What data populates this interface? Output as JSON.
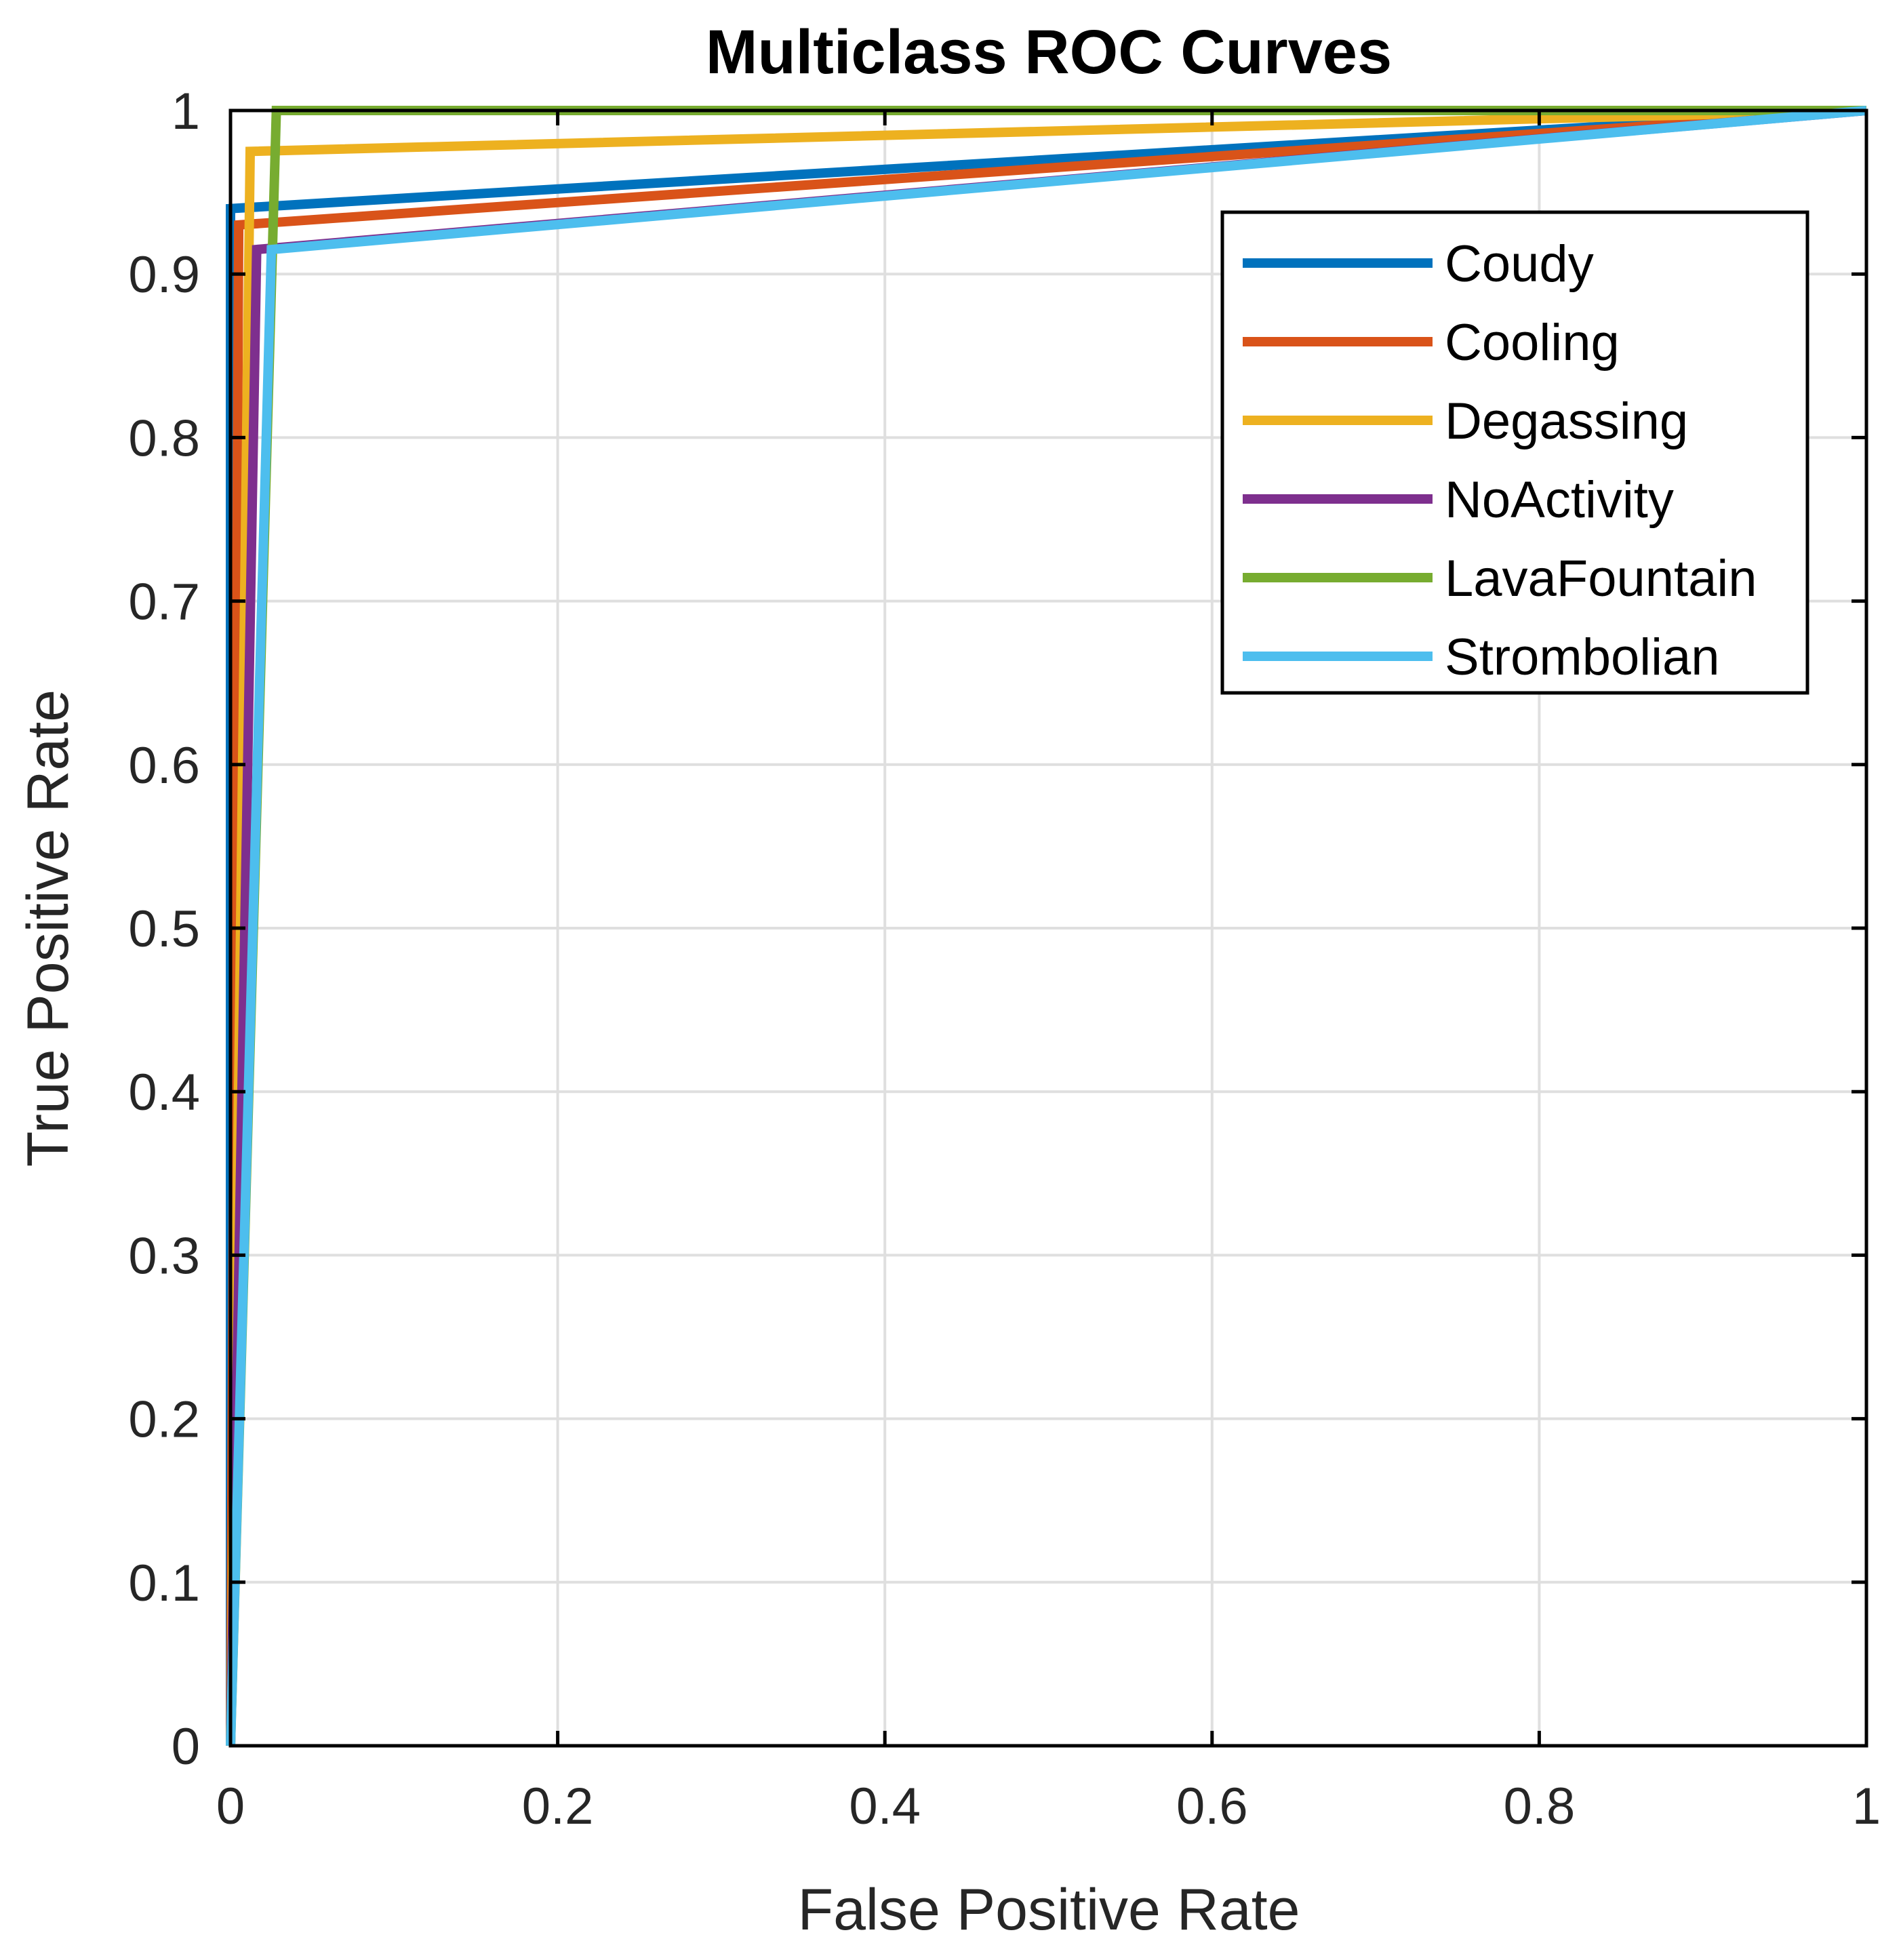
{
  "chart_data": {
    "type": "line",
    "title": "Multiclass ROC Curves",
    "xlabel": "False Positive Rate",
    "ylabel": "True Positive Rate",
    "xlim": [
      0,
      1
    ],
    "ylim": [
      0,
      1
    ],
    "grid": true,
    "legend_position": "top-right",
    "x_ticks": [
      0,
      0.2,
      0.4,
      0.6,
      0.8,
      1
    ],
    "x_tick_labels": [
      "0",
      "0.2",
      "0.4",
      "0.6",
      "0.8",
      "1"
    ],
    "y_ticks": [
      0,
      0.1,
      0.2,
      0.3,
      0.4,
      0.5,
      0.6,
      0.7,
      0.8,
      0.9,
      1
    ],
    "y_tick_labels": [
      "0",
      "0.1",
      "0.2",
      "0.3",
      "0.4",
      "0.5",
      "0.6",
      "0.7",
      "0.8",
      "0.9",
      "1"
    ],
    "series": [
      {
        "name": "Coudy",
        "color": "#0072BD",
        "x": [
          0,
          0,
          1
        ],
        "y": [
          0,
          0.94,
          1
        ]
      },
      {
        "name": "Cooling",
        "color": "#D95319",
        "x": [
          0,
          0.005,
          1
        ],
        "y": [
          0,
          0.93,
          1
        ]
      },
      {
        "name": "Degassing",
        "color": "#EDB120",
        "x": [
          0,
          0.012,
          1
        ],
        "y": [
          0,
          0.975,
          1
        ]
      },
      {
        "name": "NoActivity",
        "color": "#7E2F8E",
        "x": [
          0,
          0.016,
          1
        ],
        "y": [
          0,
          0.915,
          1
        ]
      },
      {
        "name": "LavaFountain",
        "color": "#77AC30",
        "x": [
          0,
          0.028,
          1
        ],
        "y": [
          0,
          1.0,
          1
        ]
      },
      {
        "name": "Strombolian",
        "color": "#4DBEEE",
        "x": [
          0,
          0.025,
          1
        ],
        "y": [
          0,
          0.915,
          1
        ]
      }
    ]
  }
}
